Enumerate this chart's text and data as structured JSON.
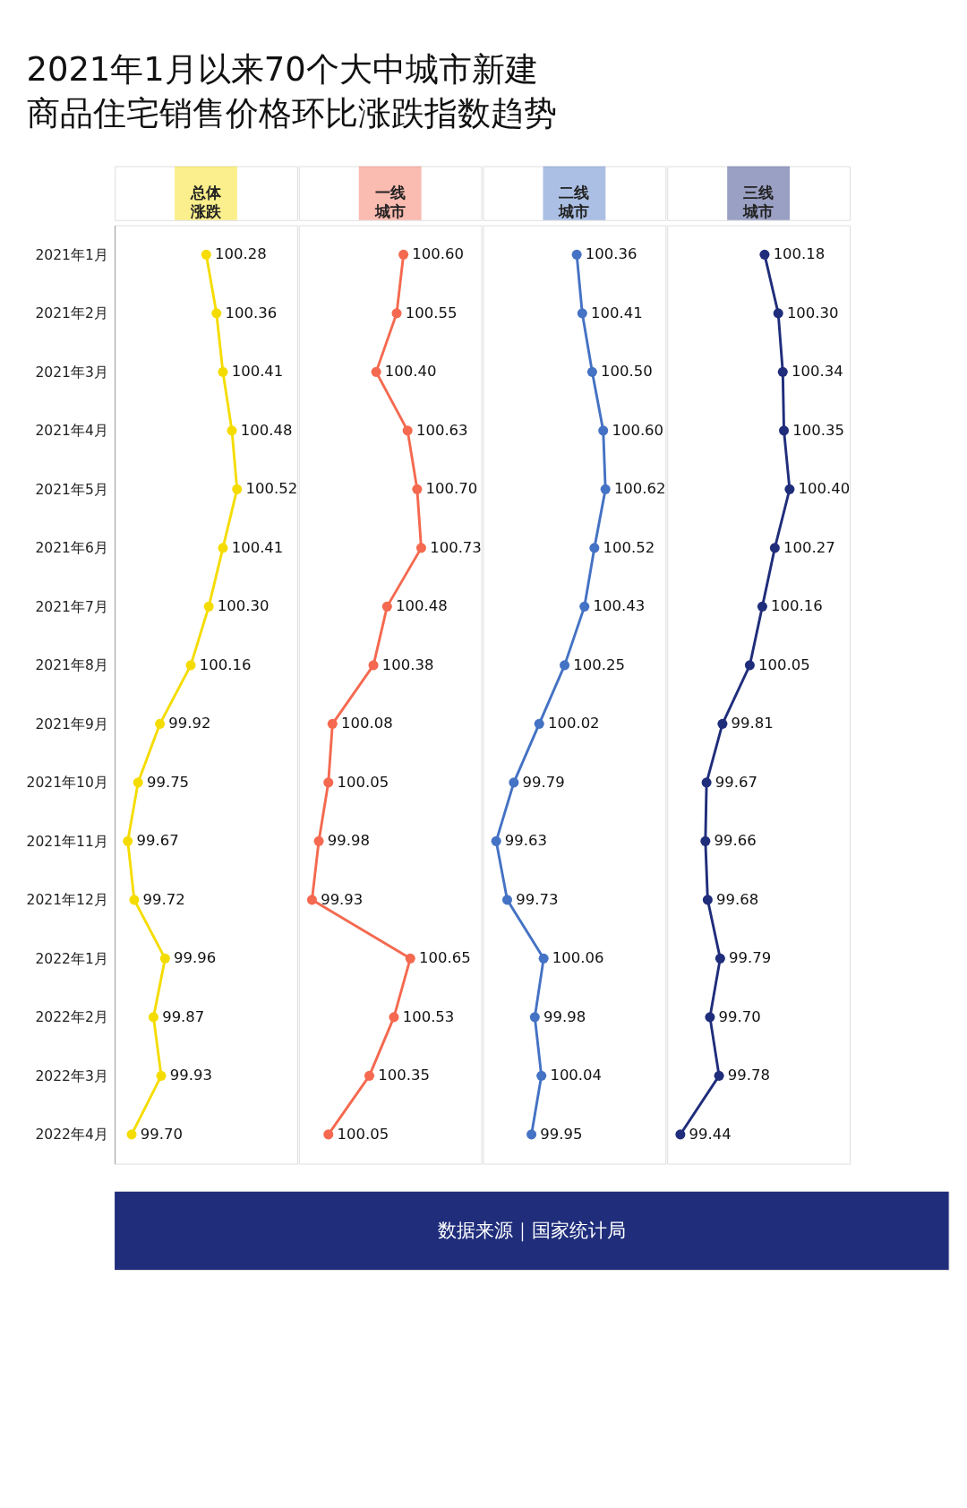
{
  "chart_data": [
    {
      "type": "line",
      "orientation": "horizontal",
      "title": "2021年1月以来70个大中城市新建商品住宅销售价格环比涨跌指数趋势",
      "annotations": [
        "数据来源｜国家统计局"
      ],
      "categories": [
        "2021年1月",
        "2021年2月",
        "2021年3月",
        "2021年4月",
        "2021年5月",
        "2021年6月",
        "2021年7月",
        "2021年8月",
        "2021年9月",
        "2021年10月",
        "2021年11月",
        "2021年12月",
        "2022年1月",
        "2022年2月",
        "2022年3月",
        "2022年4月"
      ],
      "tick_labels": "y",
      "marker": "circle",
      "grid": false,
      "legend": false,
      "series": [
        {
          "name": "总体涨跌",
          "color": "#f5dc00",
          "values": [
            100.28,
            100.36,
            100.41,
            100.48,
            100.52,
            100.41,
            100.3,
            100.16,
            99.92,
            99.75,
            99.67,
            99.72,
            99.96,
            99.87,
            99.93,
            99.7
          ],
          "value_labels": [
            "100.28",
            "100.36",
            "100.41",
            "100.48",
            "100.52",
            "100.41",
            "100.30",
            "100.16",
            "99.92",
            "99.75",
            "99.67",
            "99.72",
            "99.96",
            "99.87",
            "99.93",
            "99.70"
          ]
        }
      ]
    },
    {
      "type": "line",
      "orientation": "horizontal",
      "tick_labels": false,
      "marker": "circle",
      "grid": false,
      "legend": false,
      "series": [
        {
          "name": "一线城市",
          "color": "#f4694f",
          "values": [
            100.6,
            100.55,
            100.4,
            100.63,
            100.7,
            100.73,
            100.48,
            100.38,
            100.08,
            100.05,
            99.98,
            99.93,
            100.65,
            100.53,
            100.35,
            100.05
          ],
          "value_labels": [
            "100.60",
            "100.55",
            "100.40",
            "100.63",
            "100.70",
            "100.73",
            "100.48",
            "100.38",
            "100.08",
            "100.05",
            "99.98",
            "99.93",
            "100.65",
            "100.53",
            "100.35",
            "100.05"
          ]
        }
      ]
    },
    {
      "type": "line",
      "orientation": "horizontal",
      "tick_labels": false,
      "marker": "circle",
      "grid": false,
      "legend": false,
      "series": [
        {
          "name": "二线城市",
          "color": "#4472c4",
          "values": [
            100.36,
            100.41,
            100.5,
            100.6,
            100.62,
            100.52,
            100.43,
            100.25,
            100.02,
            99.79,
            99.63,
            99.73,
            100.06,
            99.98,
            100.04,
            99.95
          ],
          "value_labels": [
            "100.36",
            "100.41",
            "100.50",
            "100.60",
            "100.62",
            "100.52",
            "100.43",
            "100.25",
            "100.02",
            "99.79",
            "99.63",
            "99.73",
            "100.06",
            "99.98",
            "100.04",
            "99.95"
          ]
        }
      ]
    },
    {
      "type": "line",
      "orientation": "horizontal",
      "tick_labels": false,
      "marker": "circle",
      "grid": false,
      "legend": false,
      "series": [
        {
          "name": "三线城市",
          "color": "#1f2d7b",
          "values": [
            100.18,
            100.3,
            100.34,
            100.35,
            100.4,
            100.27,
            100.16,
            100.05,
            99.81,
            99.67,
            99.66,
            99.68,
            99.79,
            99.7,
            99.78,
            99.44
          ],
          "value_labels": [
            "100.18",
            "100.30",
            "100.34",
            "100.35",
            "100.40",
            "100.27",
            "100.16",
            "100.05",
            "99.81",
            "99.67",
            "99.66",
            "99.68",
            "99.79",
            "99.70",
            "99.78",
            "99.44"
          ]
        }
      ]
    }
  ]
}
